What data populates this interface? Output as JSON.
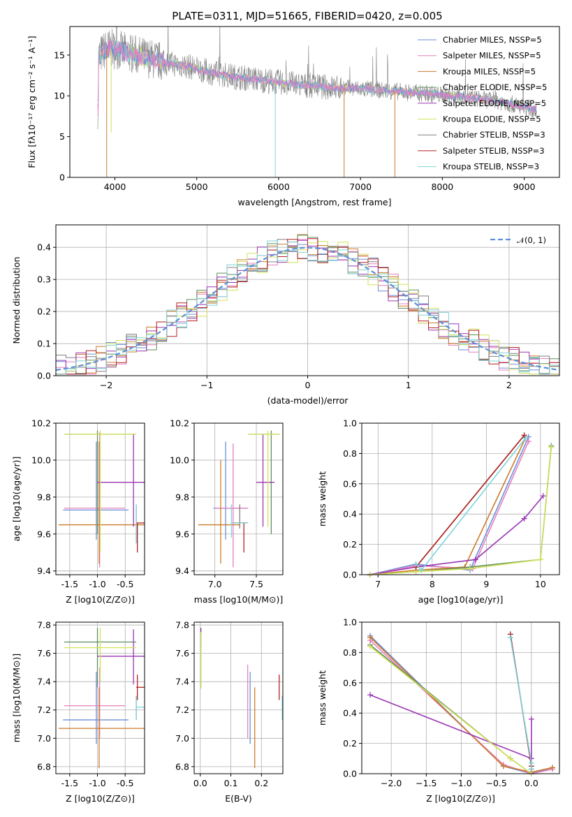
{
  "title": "PLATE=0311, MJD=51665, FIBERID=0420, z=0.005",
  "colors": {
    "chabrier_miles": "#6b8fd8",
    "salpeter_miles": "#e77fbf",
    "kroupa_miles": "#cc7a2a",
    "chabrier_elodie": "#5f8f5f",
    "salpeter_elodie": "#9b35b5",
    "kroupa_elodie": "#d4e157",
    "chabrier_stelib": "#808080",
    "salpeter_stelib": "#b22222",
    "kroupa_stelib": "#7fd4d8"
  },
  "chart_data": [
    {
      "id": "spectrum",
      "type": "line",
      "xlabel": "wavelength [Angstrom, rest frame]",
      "ylabel": "Flux [fλ10⁻¹⁷ erg cm⁻² s⁻¹ A⁻¹]",
      "xlim": [
        3450,
        9430
      ],
      "ylim": [
        0,
        18.5
      ],
      "xticks": [
        "4000",
        "5000",
        "6000",
        "7000",
        "8000",
        "9000"
      ],
      "yticks": [
        "0",
        "5",
        "10",
        "15"
      ],
      "legend": [
        "Chabrier MILES, NSSP=5",
        "Salpeter MILES, NSSP=5",
        "Kroupa MILES, NSSP=5",
        "Chabrier ELODIE, NSSP=5",
        "Salpeter ELODIE, NSSP=5",
        "Kroupa ELODIE, NSSP=5",
        "Chabrier STELIB, NSSP=3",
        "Salpeter STELIB, NSSP=3",
        "Kroupa STELIB, NSSP=3"
      ],
      "continuum": {
        "x": [
          3800,
          3900,
          4000,
          4300,
          4600,
          4900,
          5200,
          5500,
          5900,
          6300,
          6700,
          7100,
          7500,
          7900,
          8300,
          8700,
          9100
        ],
        "y": [
          14.8,
          15.8,
          15.7,
          14.9,
          14.1,
          13.6,
          12.8,
          12.3,
          11.8,
          11.3,
          11.0,
          10.8,
          10.5,
          10.2,
          9.8,
          9.3,
          8.4
        ]
      },
      "dips": [
        {
          "x": 3900,
          "y": 0
        },
        {
          "x": 3955,
          "y": 5.5
        },
        {
          "x": 5960,
          "y": 0
        },
        {
          "x": 6800,
          "y": 0
        },
        {
          "x": 7420,
          "y": 0
        }
      ]
    },
    {
      "id": "residuals",
      "type": "histogram",
      "xlabel": "(data-model)/error",
      "ylabel": "Normed distribution",
      "xlim": [
        -2.5,
        2.5
      ],
      "ylim": [
        0,
        0.47
      ],
      "xticks": [
        "−2",
        "−1",
        "0",
        "1",
        "2"
      ],
      "yticks": [
        "0.0",
        "0.1",
        "0.2",
        "0.3",
        "0.4"
      ],
      "legend": [
        "𝒩(0, 1)"
      ],
      "normal": {
        "mean": 0,
        "sigma": 1
      }
    },
    {
      "id": "age_vs_Z",
      "type": "errorbar",
      "xlabel": "Z [log10(Z/Z⊙)]",
      "ylabel": "age  [log10(age/yr)]",
      "xlim": [
        -1.75,
        -0.15
      ],
      "ylim": [
        9.38,
        10.2
      ],
      "xticks": [
        [
          "-1.5",
          -1.5
        ],
        [
          "-1.0",
          -1.0
        ],
        [
          "-0.5",
          -0.5
        ]
      ],
      "yticks": [
        [
          "9.4",
          9.4
        ],
        [
          "9.6",
          9.6
        ],
        [
          "9.8",
          9.8
        ],
        [
          "10.0",
          10.0
        ],
        [
          "10.2",
          10.2
        ]
      ],
      "points": [
        {
          "s": "chabrier_miles",
          "x": -1.02,
          "xe": [
            -1.62,
            -0.44
          ],
          "y": 9.73,
          "ye": [
            9.57,
            10.1
          ]
        },
        {
          "s": "salpeter_miles",
          "x": -0.96,
          "xe": [
            -1.6,
            -0.5
          ],
          "y": 9.74,
          "ye": [
            9.42,
            10.15
          ]
        },
        {
          "s": "kroupa_miles",
          "x": -0.97,
          "xe": [
            -1.7,
            -0.15
          ],
          "y": 9.65,
          "ye": [
            9.44,
            10.1
          ]
        },
        {
          "s": "chabrier_elodie",
          "x": -1.0,
          "xe": [
            -1.6,
            -0.3
          ],
          "y": 10.14,
          "ye": [
            9.6,
            10.16
          ]
        },
        {
          "s": "salpeter_elodie",
          "x": -0.35,
          "xe": [
            -1.0,
            -0.15
          ],
          "y": 9.88,
          "ye": [
            9.64,
            10.14
          ]
        },
        {
          "s": "kroupa_elodie",
          "x": -0.95,
          "xe": [
            -1.6,
            -0.3
          ],
          "y": 10.14,
          "ye": [
            9.5,
            10.16
          ]
        },
        {
          "s": "chabrier_stelib",
          "x": -0.3,
          "xe": [
            -0.3,
            -0.3
          ],
          "y": 9.66,
          "ye": [
            9.55,
            9.76
          ]
        },
        {
          "s": "salpeter_stelib",
          "x": -0.28,
          "xe": [
            -0.3,
            -0.15
          ],
          "y": 9.66,
          "ye": [
            9.5,
            9.66
          ]
        },
        {
          "s": "kroupa_stelib",
          "x": -0.3,
          "xe": [
            -0.3,
            -0.3
          ],
          "y": 9.66,
          "ye": [
            9.55,
            9.76
          ]
        }
      ]
    },
    {
      "id": "age_vs_mass",
      "type": "errorbar",
      "xlabel": "mass [log10(M/M⊙)]",
      "ylabel": "",
      "xlim": [
        6.75,
        7.82
      ],
      "ylim": [
        9.38,
        10.2
      ],
      "xticks": [
        [
          "7.0",
          7.0
        ],
        [
          "7.5",
          7.5
        ]
      ],
      "yticks": [
        [
          "9.4",
          9.4
        ],
        [
          "9.6",
          9.6
        ],
        [
          "9.8",
          9.8
        ],
        [
          "10.0",
          10.0
        ],
        [
          "10.2",
          10.2
        ]
      ],
      "points": [
        {
          "s": "chabrier_miles",
          "x": 7.13,
          "xe": [
            6.98,
            7.4
          ],
          "y": 9.74,
          "ye": [
            9.57,
            10.1
          ]
        },
        {
          "s": "salpeter_miles",
          "x": 7.22,
          "xe": [
            7.0,
            7.4
          ],
          "y": 9.74,
          "ye": [
            9.42,
            10.09
          ]
        },
        {
          "s": "kroupa_miles",
          "x": 7.07,
          "xe": [
            6.8,
            7.3
          ],
          "y": 9.65,
          "ye": [
            9.44,
            10.0
          ]
        },
        {
          "s": "chabrier_elodie",
          "x": 7.68,
          "xe": [
            7.4,
            7.78
          ],
          "y": 10.14,
          "ye": [
            9.6,
            10.16
          ]
        },
        {
          "s": "salpeter_elodie",
          "x": 7.58,
          "xe": [
            7.5,
            7.72
          ],
          "y": 9.88,
          "ye": [
            9.64,
            10.14
          ]
        },
        {
          "s": "kroupa_elodie",
          "x": 7.64,
          "xe": [
            7.4,
            7.78
          ],
          "y": 10.14,
          "ye": [
            9.64,
            10.16
          ]
        },
        {
          "s": "chabrier_stelib",
          "x": 7.3,
          "xe": [
            7.2,
            7.4
          ],
          "y": 9.66,
          "ye": [
            9.63,
            9.76
          ]
        },
        {
          "s": "salpeter_stelib",
          "x": 7.35,
          "xe": [
            7.2,
            7.4
          ],
          "y": 9.66,
          "ye": [
            9.5,
            9.66
          ]
        },
        {
          "s": "kroupa_stelib",
          "x": 7.2,
          "xe": [
            7.2,
            7.4
          ],
          "y": 9.66,
          "ye": [
            9.58,
            9.76
          ]
        }
      ]
    },
    {
      "id": "weight_vs_age",
      "type": "line",
      "xlabel": "age  [log10(age/yr)]",
      "ylabel": "mass weight",
      "xlim": [
        6.7,
        10.35
      ],
      "ylim": [
        0,
        1
      ],
      "xticks": [
        [
          "7",
          7
        ],
        [
          "8",
          8
        ],
        [
          "9",
          9
        ],
        [
          "10",
          10
        ]
      ],
      "yticks": [
        [
          "0.0",
          0
        ],
        [
          "0.2",
          0.2
        ],
        [
          "0.4",
          0.4
        ],
        [
          "0.6",
          0.6
        ],
        [
          "0.8",
          0.8
        ],
        [
          "1.0",
          1.0
        ]
      ],
      "series": [
        {
          "s": "chabrier_miles",
          "x": [
            6.85,
            7.7,
            8.7,
            9.78
          ],
          "y": [
            0.0,
            0.07,
            0.03,
            0.91
          ]
        },
        {
          "s": "salpeter_miles",
          "x": [
            6.85,
            7.7,
            8.75,
            9.78
          ],
          "y": [
            0.0,
            0.06,
            0.04,
            0.88
          ]
        },
        {
          "s": "kroupa_miles",
          "x": [
            6.85,
            7.7,
            8.6,
            9.72
          ],
          "y": [
            0.0,
            0.03,
            0.05,
            0.9
          ]
        },
        {
          "s": "chabrier_elodie",
          "x": [
            6.85,
            7.7,
            8.7,
            10.0,
            10.2
          ],
          "y": [
            0.0,
            0.02,
            0.05,
            0.1,
            0.85
          ]
        },
        {
          "s": "salpeter_elodie",
          "x": [
            6.85,
            7.7,
            8.8,
            9.7,
            10.05
          ],
          "y": [
            0.0,
            0.05,
            0.1,
            0.37,
            0.52
          ]
        },
        {
          "s": "kroupa_elodie",
          "x": [
            6.85,
            7.7,
            8.7,
            10.0,
            10.2
          ],
          "y": [
            0.0,
            0.02,
            0.04,
            0.1,
            0.84
          ]
        },
        {
          "s": "chabrier_stelib",
          "x": [
            7.7,
            9.7
          ],
          "y": [
            0.05,
            0.92
          ]
        },
        {
          "s": "salpeter_stelib",
          "x": [
            7.7,
            9.7
          ],
          "y": [
            0.05,
            0.92
          ]
        },
        {
          "s": "kroupa_stelib",
          "x": [
            7.7,
            7.8,
            9.72
          ],
          "y": [
            0.07,
            0.03,
            0.9
          ]
        }
      ]
    },
    {
      "id": "mass_vs_Z",
      "type": "errorbar",
      "xlabel": "Z [log10(Z/Z⊙)]",
      "ylabel": "mass [log10(M/M⊙)]",
      "xlim": [
        -1.75,
        -0.15
      ],
      "ylim": [
        6.75,
        7.82
      ],
      "xticks": [
        [
          "-1.5",
          -1.5
        ],
        [
          "-1.0",
          -1.0
        ],
        [
          "-0.5",
          -0.5
        ]
      ],
      "yticks": [
        [
          "6.8",
          6.8
        ],
        [
          "7.0",
          7.0
        ],
        [
          "7.2",
          7.2
        ],
        [
          "7.4",
          7.4
        ],
        [
          "7.6",
          7.6
        ],
        [
          "7.8",
          7.8
        ]
      ],
      "points": [
        {
          "s": "chabrier_miles",
          "x": -1.02,
          "xe": [
            -1.62,
            -0.44
          ],
          "y": 7.13,
          "ye": [
            6.96,
            7.47
          ]
        },
        {
          "s": "salpeter_miles",
          "x": -0.96,
          "xe": [
            -1.6,
            -0.5
          ],
          "y": 7.23,
          "ye": [
            7.0,
            7.5
          ]
        },
        {
          "s": "kroupa_miles",
          "x": -0.97,
          "xe": [
            -1.7,
            -0.15
          ],
          "y": 7.07,
          "ye": [
            6.79,
            7.36
          ]
        },
        {
          "s": "chabrier_elodie",
          "x": -1.0,
          "xe": [
            -1.6,
            -0.3
          ],
          "y": 7.68,
          "ye": [
            7.36,
            7.78
          ]
        },
        {
          "s": "salpeter_elodie",
          "x": -0.35,
          "xe": [
            -1.0,
            -0.15
          ],
          "y": 7.58,
          "ye": [
            7.38,
            7.77
          ]
        },
        {
          "s": "kroupa_elodie",
          "x": -0.95,
          "xe": [
            -1.6,
            -0.3
          ],
          "y": 7.64,
          "ye": [
            7.4,
            7.78
          ]
        },
        {
          "s": "chabrier_stelib",
          "x": -0.3,
          "xe": [
            -0.3,
            -0.3
          ],
          "y": 7.22,
          "ye": [
            7.13,
            7.3
          ]
        },
        {
          "s": "salpeter_stelib",
          "x": -0.28,
          "xe": [
            -0.3,
            -0.15
          ],
          "y": 7.36,
          "ye": [
            7.27,
            7.45
          ]
        },
        {
          "s": "kroupa_stelib",
          "x": -0.3,
          "xe": [
            -0.3,
            -0.15
          ],
          "y": 7.22,
          "ye": [
            7.13,
            7.3
          ]
        }
      ]
    },
    {
      "id": "mass_vs_ebv",
      "type": "errorbar",
      "xlabel": "E(B-V)",
      "ylabel": "",
      "xlim": [
        -0.02,
        0.27
      ],
      "ylim": [
        6.75,
        7.82
      ],
      "xticks": [
        [
          "0.0",
          0.0
        ],
        [
          "0.1",
          0.1
        ],
        [
          "0.2",
          0.2
        ]
      ],
      "yticks": [
        [
          "6.8",
          6.8
        ],
        [
          "7.0",
          7.0
        ],
        [
          "7.2",
          7.2
        ],
        [
          "7.4",
          7.4
        ],
        [
          "7.6",
          7.6
        ],
        [
          "7.8",
          7.8
        ]
      ],
      "points": [
        {
          "s": "chabrier_miles",
          "x": 0.163,
          "xe": [
            0.163,
            0.163
          ],
          "y": 7.13,
          "ye": [
            6.96,
            7.47
          ]
        },
        {
          "s": "salpeter_miles",
          "x": 0.155,
          "xe": [
            0.155,
            0.155
          ],
          "y": 7.23,
          "ye": [
            7.0,
            7.52
          ]
        },
        {
          "s": "kroupa_miles",
          "x": 0.178,
          "xe": [
            0.178,
            0.178
          ],
          "y": 7.07,
          "ye": [
            6.79,
            7.36
          ]
        },
        {
          "s": "chabrier_elodie",
          "x": 0.002,
          "xe": [
            0.002,
            0.002
          ],
          "y": 7.68,
          "ye": [
            7.36,
            7.78
          ]
        },
        {
          "s": "salpeter_elodie",
          "x": 0.002,
          "xe": [
            0.002,
            0.002
          ],
          "y": 7.68,
          "ye": [
            7.64,
            7.78
          ]
        },
        {
          "s": "kroupa_elodie",
          "x": 0.002,
          "xe": [
            0.002,
            0.002
          ],
          "y": 7.64,
          "ye": [
            7.35,
            7.75
          ]
        },
        {
          "s": "chabrier_stelib",
          "x": 0.268,
          "xe": [
            0.268,
            0.268
          ],
          "y": 7.22,
          "ye": [
            7.13,
            7.3
          ]
        },
        {
          "s": "salpeter_stelib",
          "x": 0.258,
          "xe": [
            0.258,
            0.258
          ],
          "y": 7.36,
          "ye": [
            7.27,
            7.45
          ]
        },
        {
          "s": "kroupa_stelib",
          "x": 0.268,
          "xe": [
            0.268,
            0.268
          ],
          "y": 7.22,
          "ye": [
            7.13,
            7.3
          ]
        }
      ]
    },
    {
      "id": "weight_vs_Z",
      "type": "line",
      "xlabel": "Z [log10(Z/Z⊙)]",
      "ylabel": "mass weight",
      "xlim": [
        -2.42,
        0.4
      ],
      "ylim": [
        0,
        1
      ],
      "xticks": [
        [
          "−2.0",
          -2.0
        ],
        [
          "−1.5",
          -1.5
        ],
        [
          "−1.0",
          -1.0
        ],
        [
          "−0.5",
          -0.5
        ],
        [
          "0.0",
          0.0
        ]
      ],
      "yticks": [
        [
          "0.0",
          0
        ],
        [
          "0.2",
          0.2
        ],
        [
          "0.4",
          0.4
        ],
        [
          "0.6",
          0.6
        ],
        [
          "0.8",
          0.8
        ],
        [
          "1.0",
          1.0
        ]
      ],
      "series": [
        {
          "s": "chabrier_miles",
          "x": [
            -2.3,
            -0.4,
            0.0,
            0.3
          ],
          "y": [
            0.91,
            0.05,
            0.0,
            0.04
          ]
        },
        {
          "s": "salpeter_miles",
          "x": [
            -2.3,
            -0.4,
            0.0,
            0.3
          ],
          "y": [
            0.88,
            0.06,
            0.0,
            0.03
          ]
        },
        {
          "s": "kroupa_miles",
          "x": [
            -2.3,
            -0.4,
            0.0,
            0.3
          ],
          "y": [
            0.9,
            0.05,
            0.01,
            0.04
          ]
        },
        {
          "s": "chabrier_elodie",
          "x": [
            -2.3,
            -0.3,
            0.0
          ],
          "y": [
            0.85,
            0.1,
            0.0
          ]
        },
        {
          "s": "salpeter_elodie",
          "x": [
            -2.3,
            0.0,
            0.0,
            0.0
          ],
          "y": [
            0.52,
            0.1,
            0.0,
            0.36
          ]
        },
        {
          "s": "kroupa_elodie",
          "x": [
            -2.3,
            -0.3,
            0.0
          ],
          "y": [
            0.84,
            0.1,
            0.0
          ]
        },
        {
          "s": "chabrier_stelib",
          "x": [
            -0.3,
            0.0,
            0.0
          ],
          "y": [
            0.92,
            0.05,
            0.03
          ]
        },
        {
          "s": "salpeter_stelib",
          "x": [
            -0.3,
            0.0,
            0.0
          ],
          "y": [
            0.92,
            0.05,
            0.03
          ]
        },
        {
          "s": "kroupa_stelib",
          "x": [
            -0.3,
            0.0,
            0.0
          ],
          "y": [
            0.9,
            0.07,
            0.03
          ]
        }
      ]
    }
  ]
}
